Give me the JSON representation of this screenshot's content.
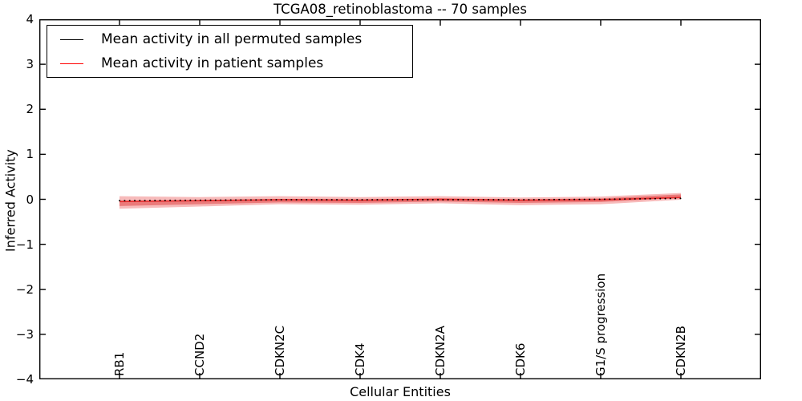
{
  "figure": {
    "title": "TCGA08_retinoblastoma -- 70 samples",
    "xlabel": "Cellular Entities",
    "ylabel": "Inferred Activity"
  },
  "legend": {
    "position": "upper left",
    "items": [
      {
        "label": "Mean activity in all permuted samples",
        "color": "#000000"
      },
      {
        "label": "Mean activity in patient samples",
        "color": "#ff0000"
      }
    ]
  },
  "chart_data": {
    "type": "line",
    "title": "TCGA08_retinoblastoma -- 70 samples",
    "xlabel": "Cellular Entities",
    "ylabel": "Inferred Activity",
    "ylim": [
      -4,
      4
    ],
    "ytick_values": [
      4,
      3,
      2,
      1,
      0,
      -1,
      -2,
      -3,
      -4
    ],
    "ytick_labels": [
      "4",
      "3",
      "2",
      "1",
      "0",
      "−1",
      "−2",
      "−3",
      "−4"
    ],
    "grid": false,
    "legend_position": "upper left",
    "categories": [
      "RB1",
      "CCND2",
      "CDKN2C",
      "CDK4",
      "CDKN2A",
      "CDK6",
      "G1/S progression",
      "CDKN2B"
    ],
    "series": [
      {
        "name": "Mean activity in all permuted samples",
        "color": "#000000",
        "linestyle": "dotted",
        "values": [
          -0.03,
          -0.02,
          -0.01,
          -0.01,
          -0.01,
          -0.01,
          0.0,
          0.02
        ]
      },
      {
        "name": "Mean activity in patient samples",
        "color": "#e62e2e",
        "linestyle": "solid",
        "values": [
          -0.05,
          -0.03,
          -0.01,
          -0.02,
          0.0,
          -0.02,
          -0.01,
          0.04
        ],
        "band_outer_upper": [
          0.12,
          0.08,
          0.08,
          0.07,
          0.07,
          0.06,
          0.07,
          0.1
        ],
        "band_outer_lower": [
          -0.16,
          -0.13,
          -0.1,
          -0.1,
          -0.09,
          -0.11,
          -0.1,
          -0.05
        ],
        "band_inner_upper": [
          0.02,
          0.01,
          0.02,
          0.02,
          0.02,
          0.02,
          0.03,
          0.07
        ],
        "band_inner_lower": [
          -0.1,
          -0.08,
          -0.06,
          -0.06,
          -0.05,
          -0.06,
          -0.05,
          -0.01
        ],
        "band_color": "rgba(235,85,85,0.40)",
        "band_inner_color": "rgba(222,55,55,0.48)"
      }
    ]
  }
}
